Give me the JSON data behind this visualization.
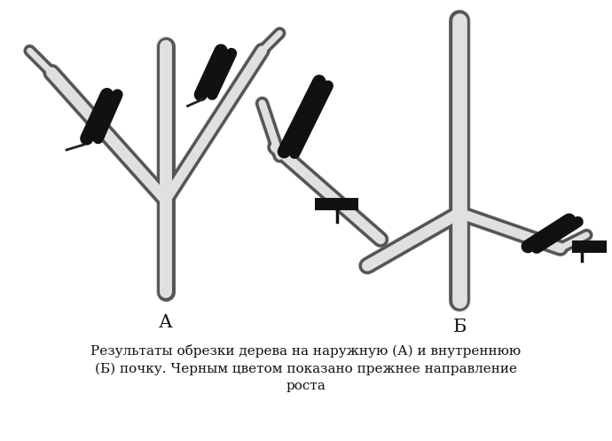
{
  "bg_color": "#ffffff",
  "line_color": "#1a1a1a",
  "label_A": "А",
  "label_B": "Б",
  "caption_line1": "Результаты обрезки дерева на наружную (А) и внутреннюю",
  "caption_line2": "(Б) почку. Черным цветом показано прежнее направление",
  "caption_line3": "роста",
  "caption_fontsize": 11,
  "label_fontsize": 15
}
